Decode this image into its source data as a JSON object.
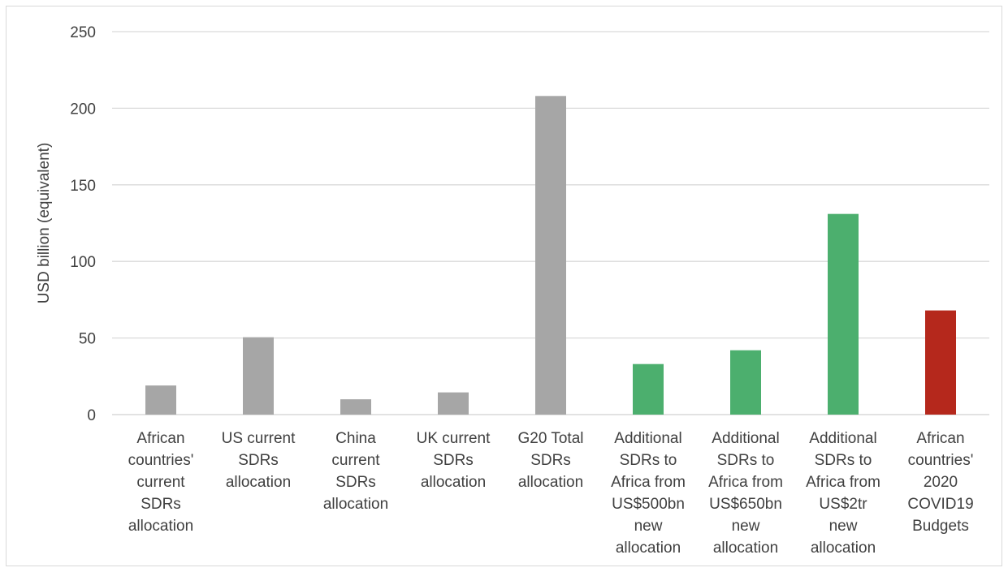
{
  "chart_data": {
    "type": "bar",
    "title": "",
    "xlabel": "",
    "ylabel": "USD billion (equivalent)",
    "ylim": [
      0,
      250
    ],
    "yticks": [
      0,
      50,
      100,
      150,
      200,
      250
    ],
    "grid": true,
    "legend": "none",
    "categories": [
      [
        "African",
        "countries'",
        "current",
        "SDRs",
        "allocation"
      ],
      [
        "US current",
        "SDRs",
        "allocation"
      ],
      [
        "China",
        "current",
        "SDRs",
        "allocation"
      ],
      [
        "UK current",
        "SDRs",
        "allocation"
      ],
      [
        "G20 Total",
        "SDRs",
        "allocation"
      ],
      [
        "Additional",
        "SDRs to",
        "Africa from",
        "US$500bn",
        "new",
        "allocation"
      ],
      [
        "Additional",
        "SDRs to",
        "Africa from",
        "US$650bn",
        "new",
        "allocation"
      ],
      [
        "Additional",
        "SDRs to",
        "Africa from",
        "US$2tr",
        "new",
        "allocation"
      ],
      [
        "African",
        "countries'",
        "2020",
        "COVID19",
        "Budgets"
      ]
    ],
    "values": [
      19,
      50.5,
      10,
      14.5,
      208,
      33,
      42,
      131,
      68
    ],
    "colors": [
      "#a6a6a6",
      "#a6a6a6",
      "#a6a6a6",
      "#a6a6a6",
      "#a6a6a6",
      "#4caf6e",
      "#4caf6e",
      "#4caf6e",
      "#b5281c"
    ]
  }
}
